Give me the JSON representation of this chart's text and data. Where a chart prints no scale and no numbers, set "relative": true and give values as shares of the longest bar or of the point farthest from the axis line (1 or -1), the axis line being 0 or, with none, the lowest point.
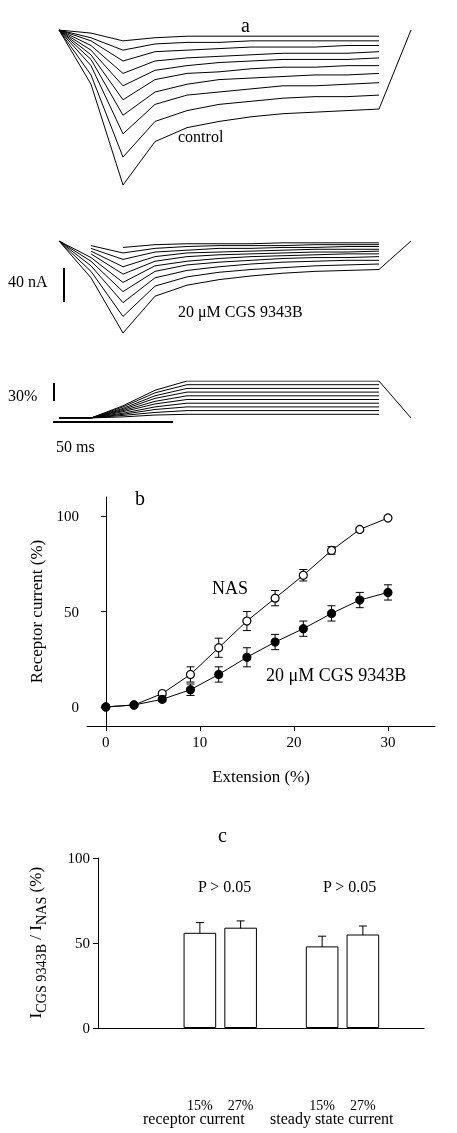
{
  "chart_data": [
    {
      "type": "line",
      "title": "a",
      "relative": true,
      "marker": "none",
      "categories": [
        null,
        null,
        null,
        null,
        null,
        null,
        null,
        null,
        null,
        null,
        null,
        null
      ],
      "annotations": [
        "control"
      ],
      "series": [
        {
          "color": "#000000",
          "values": [
            1,
            0.65,
            0,
            0.28,
            0.37,
            0.41,
            0.44,
            0.46,
            0.47,
            0.48,
            0.49,
            1
          ]
        },
        {
          "color": "#000000",
          "values": [
            1,
            0.71,
            0.18,
            0.41,
            0.48,
            0.52,
            0.54,
            0.56,
            0.57,
            0.57,
            0.58,
            null
          ]
        },
        {
          "color": "#000000",
          "values": [
            1,
            0.77,
            0.33,
            0.52,
            0.58,
            0.6,
            0.62,
            0.64,
            0.64,
            0.65,
            0.66,
            null
          ]
        },
        {
          "color": "#000000",
          "values": [
            1,
            0.81,
            0.45,
            0.6,
            0.65,
            0.68,
            0.69,
            0.7,
            0.71,
            0.71,
            0.72,
            null
          ]
        },
        {
          "color": "#000000",
          "values": [
            1,
            0.84,
            0.55,
            0.68,
            0.72,
            0.73,
            0.75,
            0.76,
            0.76,
            0.77,
            0.77,
            null
          ]
        },
        {
          "color": "#000000",
          "values": [
            1,
            0.87,
            0.64,
            0.74,
            0.77,
            0.79,
            0.8,
            0.81,
            0.81,
            0.81,
            0.82,
            null
          ]
        },
        {
          "color": "#000000",
          "values": [
            1,
            0.9,
            0.72,
            0.8,
            0.82,
            0.83,
            0.84,
            0.85,
            0.85,
            0.85,
            0.86,
            null
          ]
        },
        {
          "color": "#000000",
          "values": [
            1,
            0.93,
            0.8,
            0.86,
            0.87,
            0.88,
            0.89,
            0.89,
            0.89,
            0.9,
            0.9,
            null
          ]
        },
        {
          "color": "#000000",
          "values": [
            1,
            0.95,
            0.87,
            0.91,
            0.92,
            0.92,
            0.93,
            0.93,
            0.93,
            0.93,
            0.93,
            null
          ]
        },
        {
          "color": "#000000",
          "values": [
            1,
            0.98,
            0.93,
            0.95,
            0.96,
            0.96,
            0.96,
            0.96,
            0.96,
            0.96,
            0.96,
            null
          ]
        }
      ]
    },
    {
      "type": "line",
      "relative": true,
      "marker": "none",
      "categories": [
        null,
        null,
        null,
        null,
        null,
        null,
        null,
        null,
        null,
        null,
        null,
        null
      ],
      "annotations": [
        "40 nA",
        "20 μM CGS 9343B"
      ],
      "series": [
        {
          "color": "#000000",
          "values": [
            1,
            0.6,
            0,
            0.4,
            0.52,
            0.58,
            0.62,
            0.65,
            0.67,
            0.68,
            0.69,
            1
          ]
        },
        {
          "color": "#000000",
          "values": [
            1,
            0.67,
            0.18,
            0.51,
            0.61,
            0.66,
            0.69,
            0.71,
            0.73,
            0.74,
            0.75,
            null
          ]
        },
        {
          "color": "#000000",
          "values": [
            1,
            0.73,
            0.33,
            0.6,
            0.68,
            0.72,
            0.75,
            0.77,
            0.78,
            0.79,
            0.79,
            null
          ]
        },
        {
          "color": "#000000",
          "values": [
            1,
            0.78,
            0.45,
            0.67,
            0.74,
            0.77,
            0.79,
            0.81,
            0.82,
            0.82,
            0.83,
            null
          ]
        },
        {
          "color": "#000000",
          "values": [
            1,
            0.82,
            0.55,
            0.73,
            0.78,
            0.81,
            0.83,
            0.84,
            0.85,
            0.86,
            0.86,
            null
          ]
        },
        {
          "color": "#000000",
          "values": [
            null,
            0.86,
            0.64,
            0.78,
            0.83,
            0.85,
            0.86,
            0.87,
            0.88,
            0.88,
            0.89,
            null
          ]
        },
        {
          "color": "#000000",
          "values": [
            null,
            0.89,
            0.72,
            0.83,
            0.87,
            0.88,
            0.89,
            0.9,
            0.91,
            0.91,
            0.91,
            null
          ]
        },
        {
          "color": "#000000",
          "values": [
            null,
            0.92,
            0.8,
            0.88,
            0.9,
            0.92,
            0.92,
            0.93,
            0.93,
            0.94,
            0.94,
            null
          ]
        },
        {
          "color": "#000000",
          "values": [
            null,
            0.95,
            0.87,
            0.92,
            0.94,
            0.95,
            0.95,
            0.95,
            0.96,
            0.96,
            0.96,
            null
          ]
        },
        {
          "color": "#000000",
          "values": [
            null,
            null,
            0.93,
            0.96,
            0.97,
            0.97,
            0.97,
            0.98,
            0.98,
            0.98,
            0.98,
            null
          ]
        }
      ]
    },
    {
      "type": "line",
      "relative": true,
      "marker": "none",
      "categories": [
        null,
        null,
        null,
        null,
        null,
        null,
        null,
        null,
        null,
        null,
        null,
        null
      ],
      "annotations": [
        "30%",
        "50 ms"
      ],
      "series": [
        {
          "color": "#000000",
          "values": [
            0,
            0,
            0.33,
            0.75,
            1,
            1,
            1,
            1,
            1,
            1,
            1,
            0
          ]
        },
        {
          "color": "#000000",
          "values": [
            0,
            0,
            0.3,
            0.68,
            0.9,
            0.9,
            0.9,
            0.9,
            0.9,
            0.9,
            0.9,
            null
          ]
        },
        {
          "color": "#000000",
          "values": [
            0,
            0,
            0.26,
            0.6,
            0.8,
            0.8,
            0.8,
            0.8,
            0.8,
            0.8,
            0.8,
            null
          ]
        },
        {
          "color": "#000000",
          "values": [
            0,
            0,
            0.23,
            0.53,
            0.7,
            0.7,
            0.7,
            0.7,
            0.7,
            0.7,
            0.7,
            null
          ]
        },
        {
          "color": "#000000",
          "values": [
            0,
            0,
            0.2,
            0.45,
            0.6,
            0.6,
            0.6,
            0.6,
            0.6,
            0.6,
            0.6,
            null
          ]
        },
        {
          "color": "#000000",
          "values": [
            0,
            0,
            0.17,
            0.38,
            0.5,
            0.5,
            0.5,
            0.5,
            0.5,
            0.5,
            0.5,
            null
          ]
        },
        {
          "color": "#000000",
          "values": [
            0,
            0,
            0.13,
            0.3,
            0.4,
            0.4,
            0.4,
            0.4,
            0.4,
            0.4,
            0.4,
            null
          ]
        },
        {
          "color": "#000000",
          "values": [
            0,
            0,
            0.1,
            0.23,
            0.3,
            0.3,
            0.3,
            0.3,
            0.3,
            0.3,
            0.3,
            null
          ]
        },
        {
          "color": "#000000",
          "values": [
            0,
            0,
            0.07,
            0.15,
            0.2,
            0.2,
            0.2,
            0.2,
            0.2,
            0.2,
            0.2,
            null
          ]
        },
        {
          "color": "#000000",
          "values": [
            0,
            0,
            0.03,
            0.08,
            0.1,
            0.1,
            0.1,
            0.1,
            0.1,
            0.1,
            0.1,
            null
          ]
        }
      ]
    },
    {
      "type": "line",
      "title": "b",
      "xlabel": "Extension (%)",
      "ylabel": "Receptor current (%)",
      "x": [
        0,
        3,
        6,
        9,
        12,
        15,
        18,
        21,
        24,
        27,
        30
      ],
      "xlim": [
        -2,
        35
      ],
      "xticks": [
        0,
        10,
        20,
        30
      ],
      "ylim": [
        -10,
        110
      ],
      "yticks": [
        0,
        50,
        100
      ],
      "marker": "circle",
      "series": [
        {
          "name": "NAS",
          "color": "#ffffff",
          "values": [
            0,
            1,
            7,
            17,
            31,
            45,
            57,
            69,
            82,
            93,
            99
          ],
          "errors": [
            null,
            null,
            1,
            4,
            5,
            5,
            4,
            3,
            2,
            1,
            null
          ]
        },
        {
          "name": "20 μM CGS 9343B",
          "color": "#000000",
          "values": [
            0,
            1,
            4,
            9,
            17,
            26,
            34,
            41,
            49,
            56,
            60
          ],
          "errors": [
            null,
            null,
            1,
            3,
            4,
            5,
            4,
            4,
            4,
            4,
            4
          ]
        }
      ]
    },
    {
      "type": "bar",
      "title": "c",
      "ylabel": "I$_{CGS 9343B}$ / I$_{NAS}$  (%)",
      "categories": [
        null,
        null,
        "15%",
        "27%",
        null,
        "15%",
        "27%",
        null
      ],
      "values": [
        null,
        null,
        56,
        59,
        null,
        48,
        55,
        null
      ],
      "errors": [
        null,
        null,
        6,
        4,
        null,
        6,
        5,
        null
      ],
      "color": "#ffffff",
      "ylim": [
        0,
        100
      ],
      "yticks": [
        0,
        50,
        100
      ],
      "annotations": [
        "P > 0.05",
        "P > 0.05",
        "receptor current",
        "steady state current"
      ]
    }
  ]
}
